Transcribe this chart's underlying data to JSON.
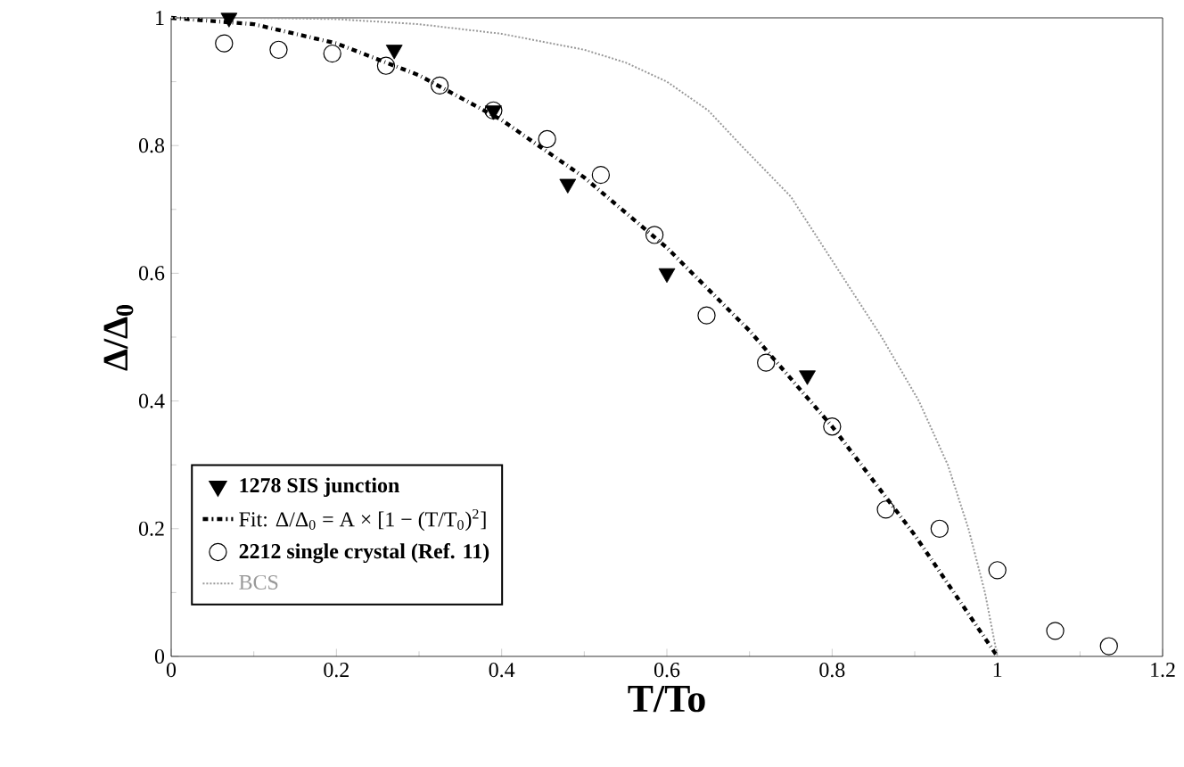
{
  "chart_data": {
    "type": "line",
    "xlabel": "T/To",
    "ylabel": "Δ/Δ$_{0}$",
    "xlim": [
      0,
      1.2
    ],
    "ylim": [
      0,
      1
    ],
    "xticks": [
      0,
      0.2,
      0.4,
      0.6,
      0.8,
      1,
      1.2
    ],
    "yticks": [
      0,
      0.2,
      0.4,
      0.6,
      0.8,
      1
    ],
    "legend": "bottom left",
    "grid": false,
    "series": [
      {
        "name": "1278 SIS junction",
        "type": "scatter",
        "marker": "triangle",
        "color": "#000000",
        "x": [
          0.07,
          0.27,
          0.39,
          0.48,
          0.6,
          0.77
        ],
        "values": [
          1.0,
          0.95,
          0.855,
          0.74,
          0.6,
          0.44
        ]
      },
      {
        "name": "Fit: Δ/Δ$_{0}$ = A × [1 − (T/T$_{0}$)$^{2}$]",
        "line_style": "dashed",
        "marker": "none",
        "color": "#000000",
        "x": [
          0,
          0.1,
          0.2,
          0.3,
          0.4,
          0.5,
          0.6,
          0.7,
          0.8,
          0.9,
          1.0
        ],
        "values": [
          1,
          0.99,
          0.96,
          0.91,
          0.84,
          0.75,
          0.64,
          0.51,
          0.36,
          0.19,
          0
        ]
      },
      {
        "name": "2212 single crystal (Ref. 11)",
        "type": "scatter",
        "marker": "circle",
        "color": "#000000",
        "x": [
          0.064,
          0.13,
          0.195,
          0.26,
          0.325,
          0.39,
          0.455,
          0.52,
          0.585,
          0.648,
          0.72,
          0.8,
          0.865,
          0.93,
          1.0,
          1.07,
          1.135
        ],
        "values": [
          0.96,
          0.95,
          0.944,
          0.925,
          0.894,
          0.855,
          0.81,
          0.754,
          0.66,
          0.534,
          0.46,
          0.36,
          0.23,
          0.2,
          0.135,
          0.04,
          0.016
        ]
      },
      {
        "name": "BCS",
        "line_style": "dotted",
        "marker": "none",
        "color": "#999999",
        "x": [
          0,
          0.1,
          0.2,
          0.3,
          0.4,
          0.5,
          0.55,
          0.6,
          0.65,
          0.69,
          0.75,
          0.81,
          0.86,
          0.905,
          0.94,
          0.965,
          0.985,
          1.0
        ],
        "values": [
          1,
          1,
          0.998,
          0.99,
          0.975,
          0.95,
          0.93,
          0.9,
          0.855,
          0.8,
          0.72,
          0.6,
          0.5,
          0.4,
          0.3,
          0.2,
          0.1,
          0
        ]
      }
    ]
  }
}
